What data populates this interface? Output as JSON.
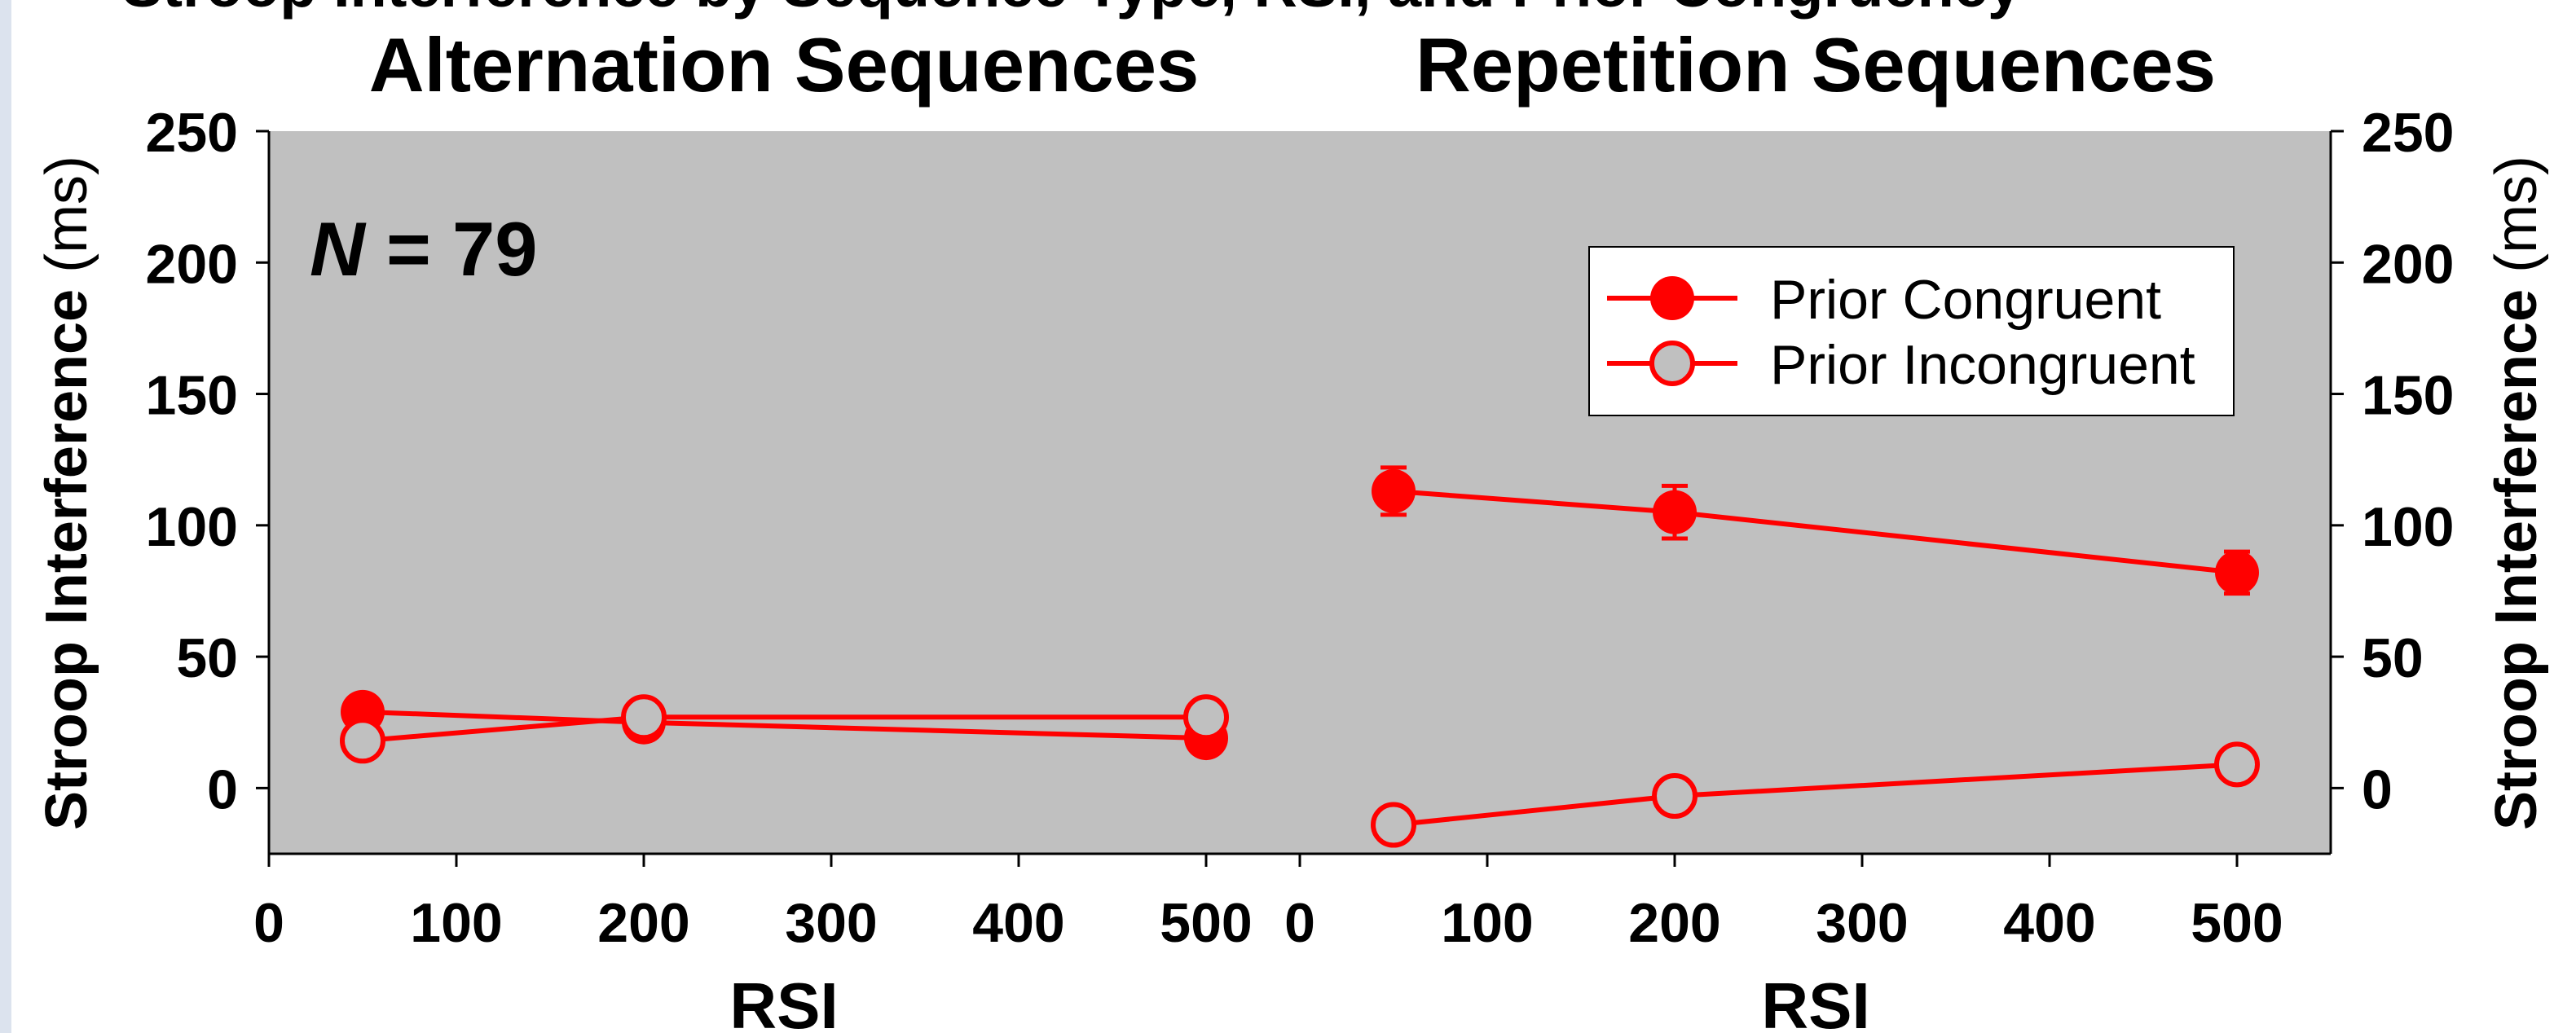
{
  "header_fragment": "Stroop Interference by Sequence Type, RSI, and Prior Congruency",
  "n_label": {
    "italic": "N",
    "rest": " = 79"
  },
  "y_axis_label": {
    "bold": "Stroop Interference",
    "normal": " (ms)"
  },
  "x_axis_label": "RSI",
  "colors": {
    "series": "#ff0000",
    "panel_bg": "#c0c0c0",
    "legend_bg": "#ffffff",
    "strip": "#dce3ee"
  },
  "chart_data": [
    {
      "type": "line",
      "title": "Alternation Sequences",
      "xlabel": "RSI",
      "ylabel": "Stroop Interference (ms)",
      "xlim": [
        0,
        550
      ],
      "ylim": [
        -25,
        250
      ],
      "xticks": [
        0,
        100,
        200,
        300,
        400,
        500
      ],
      "yticks": [
        0,
        50,
        100,
        150,
        200,
        250
      ],
      "x": [
        50,
        200,
        500
      ],
      "series": [
        {
          "name": "Prior Congruent",
          "marker": "filled",
          "values": [
            29,
            25,
            19
          ],
          "errors": [
            4,
            6,
            4
          ]
        },
        {
          "name": "Prior Incongruent",
          "marker": "open",
          "values": [
            18,
            27,
            27
          ],
          "errors": [
            3,
            3,
            3
          ]
        }
      ]
    },
    {
      "type": "line",
      "title": "Repetition Sequences",
      "xlabel": "RSI",
      "ylabel": "Stroop Interference (ms)",
      "xlim": [
        0,
        550
      ],
      "ylim": [
        -25,
        250
      ],
      "xticks": [
        0,
        100,
        200,
        300,
        400,
        500
      ],
      "yticks": [
        0,
        50,
        100,
        150,
        200,
        250
      ],
      "x": [
        50,
        200,
        500
      ],
      "legend": "top-right",
      "series": [
        {
          "name": "Prior Congruent",
          "marker": "filled",
          "values": [
            113,
            105,
            82
          ],
          "errors": [
            9,
            10,
            8
          ]
        },
        {
          "name": "Prior Incongruent",
          "marker": "open",
          "values": [
            -14,
            -3,
            9
          ],
          "errors": [
            3,
            3,
            3
          ]
        }
      ]
    }
  ]
}
